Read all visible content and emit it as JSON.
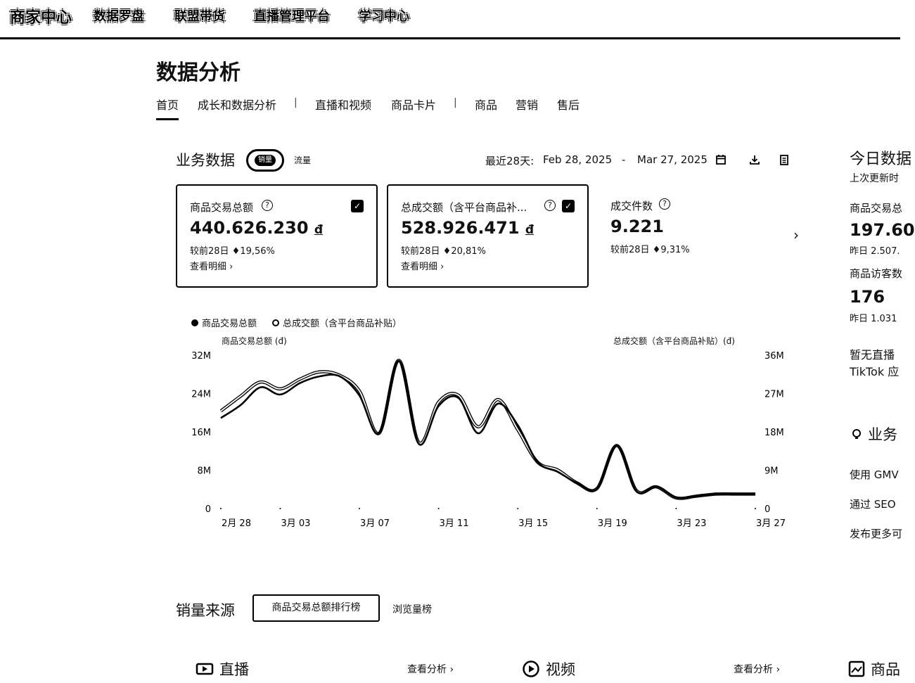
{
  "topnav": {
    "home": "商家中心",
    "items": [
      "数据罗盘",
      "联盟带货",
      "直播管理平台",
      "学习中心"
    ]
  },
  "page_title": "数据分析",
  "tabs": [
    "首页",
    "成长和数据分析",
    "直播和视频",
    "商品卡片",
    "商品",
    "营销",
    "售后"
  ],
  "tab_separator": "|",
  "business": {
    "title": "业务数据",
    "toggle_on": "销量",
    "toggle_off": "流量",
    "range_label": "最近28天:",
    "range_start": "Feb 28, 2025",
    "range_dash": "-",
    "range_end": "Mar 27, 2025",
    "icons": [
      "calendar-icon",
      "download-icon",
      "clipboard-icon"
    ]
  },
  "cards": [
    {
      "label": "商品交易总额",
      "value": "440.626.230",
      "currency": "đ",
      "compare": "较前28日 ♦19,56%",
      "detail": "查看明细 ›",
      "checked": true
    },
    {
      "label": "总成交额（含平台商品补...",
      "value": "528.926.471",
      "currency": "đ",
      "compare": "较前28日 ♦20,81%",
      "detail": "查看明细 ›",
      "checked": true
    },
    {
      "label": "成交件数",
      "value": "9.221",
      "compare": "较前28日 ♦9,31%",
      "checked": false
    }
  ],
  "chart_data": {
    "type": "line",
    "legend": [
      "商品交易总额",
      "总成交额（含平台商品补贴）"
    ],
    "left_axis_title": "商品交易总额 (đ)",
    "right_axis_title": "总成交额（含平台商品补贴）(đ)",
    "left_ticks": [
      "0",
      "8M",
      "16M",
      "24M",
      "32M"
    ],
    "right_ticks": [
      "0",
      "9M",
      "18M",
      "27M",
      "36M"
    ],
    "ylim_left": [
      0,
      32000000
    ],
    "ylim_right": [
      0,
      36000000
    ],
    "x_tick_labels": [
      "2月 28",
      "3月 03",
      "3月 07",
      "3月 11",
      "3月 15",
      "3月 19",
      "3月 23",
      "3月 27"
    ],
    "x": [
      "2月 28",
      "3月 01",
      "3月 02",
      "3月 03",
      "3月 04",
      "3月 05",
      "3月 06",
      "3月 07",
      "3月 08",
      "3月 09",
      "3月 10",
      "3月 11",
      "3月 12",
      "3月 13",
      "3月 14",
      "3月 15",
      "3月 16",
      "3月 17",
      "3月 18",
      "3月 19",
      "3月 20",
      "3月 21",
      "3月 22",
      "3月 23",
      "3月 24",
      "3月 25",
      "3月 26",
      "3月 27"
    ],
    "series": [
      {
        "name": "商品交易总额",
        "axis": "left",
        "values": [
          18.9,
          21.6,
          25.3,
          23.8,
          26.2,
          27.6,
          27.6,
          23.6,
          15.7,
          30.8,
          13.5,
          21.4,
          23.1,
          15.7,
          21.9,
          17.4,
          9.7,
          7.7,
          5.3,
          4.1,
          13.1,
          3.6,
          4.6,
          2.3,
          2.6,
          3.0,
          3.0,
          3.0
        ]
      },
      {
        "name": "总成交额（含平台商品补贴）",
        "axis": "right",
        "values": [
          22.9,
          26.4,
          29.7,
          28.1,
          30.4,
          32.1,
          31.3,
          27.6,
          17.7,
          34.8,
          15.5,
          25.0,
          26.6,
          19.2,
          25.6,
          18.5,
          10.9,
          9.1,
          6.0,
          4.7,
          14.8,
          4.2,
          5.1,
          2.5,
          2.9,
          3.4,
          3.4,
          3.4
        ]
      }
    ]
  },
  "sales_source": {
    "title": "销量来源",
    "tab_active": "商品交易总额排行榜",
    "tab_other": "浏览量榜"
  },
  "bottom": {
    "live": "直播",
    "video": "视频",
    "product": "商品",
    "view_analysis": "查看分析 ›"
  },
  "right_panel": {
    "title": "今日数据",
    "updated": "上次更新时",
    "m1_label": "商品交易总",
    "m1_value": "197.60",
    "m1_prev": "昨日 2.507.",
    "m2_label": "商品访客数",
    "m2_value": "176",
    "m2_prev": "昨日 1.031",
    "note1": "暂无直播",
    "note2": "TikTok 应",
    "section2": "业务",
    "tip1": "使用 GMV",
    "tip2": "通过 SEO",
    "tip3": "发布更多可"
  }
}
